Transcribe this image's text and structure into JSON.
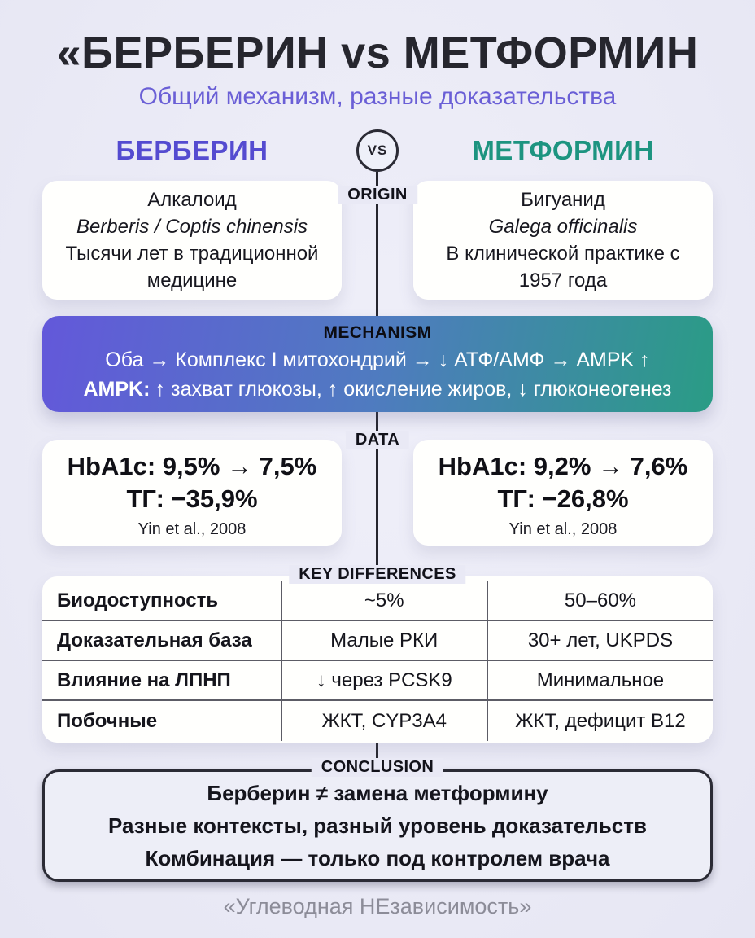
{
  "colors": {
    "background": "#e9e9f5",
    "berberine_accent": "#544bd0",
    "metformin_accent": "#1d9480",
    "gradient_start": "#6358da",
    "gradient_end": "#2a9c85",
    "dark": "#26262e"
  },
  "header": {
    "title": "«БЕРБЕРИН vs МЕТФОРМИН",
    "subtitle": "Общий механизм, разные доказательства",
    "left_column": "БЕРБЕРИН",
    "right_column": "МЕТФОРМИН",
    "vs": "VS"
  },
  "origin": {
    "label": "ORIGIN",
    "berberine": {
      "line1": "Алкалоид",
      "line2": "Berberis / Coptis chinensis",
      "line3": "Тысячи лет в традиционной медицине"
    },
    "metformin": {
      "line1": "Бигуанид",
      "line2": "Galega officinalis",
      "line3": "В клинической практике с 1957 года"
    }
  },
  "mechanism": {
    "label": "MECHANISM",
    "line1": "Оба → Комплекс I митохондрий → ↓ АТФ/АМФ → AMPK ↑",
    "line2_bold": "AMPK:",
    "line2_rest": "↑ захват глюкозы, ↑ окисление жиров, ↓ глюконеогенез"
  },
  "data": {
    "label": "DATA",
    "berberine": {
      "hba1c": "HbA1c: 9,5% → 7,5%",
      "tg": "ТГ: −35,9%",
      "source": "Yin et al., 2008"
    },
    "metformin": {
      "hba1c": "HbA1c: 9,2% → 7,6%",
      "tg": "ТГ: −26,8%",
      "source": "Yin et al., 2008"
    }
  },
  "differences": {
    "label": "KEY DIFFERENCES",
    "rows": [
      {
        "param": "Биодоступность",
        "berberine": "~5%",
        "metformin": "50–60%"
      },
      {
        "param": "Доказательная база",
        "berberine": "Малые РКИ",
        "metformin": "30+ лет, UKPDS"
      },
      {
        "param": "Влияние на ЛПНП",
        "berberine": "↓ через PCSK9",
        "metformin": "Минимальное"
      },
      {
        "param": "Побочные",
        "berberine": "ЖКТ, CYP3A4",
        "metformin": "ЖКТ, дефицит B12"
      }
    ]
  },
  "conclusion": {
    "label": "CONCLUSION",
    "lines": [
      "Берберин ≠ замена метформину",
      "Разные контексты, разный уровень доказательств",
      "Комбинация — только под контролем врача"
    ]
  },
  "footer": {
    "text": "«Углеводная НЕзависимость»"
  }
}
